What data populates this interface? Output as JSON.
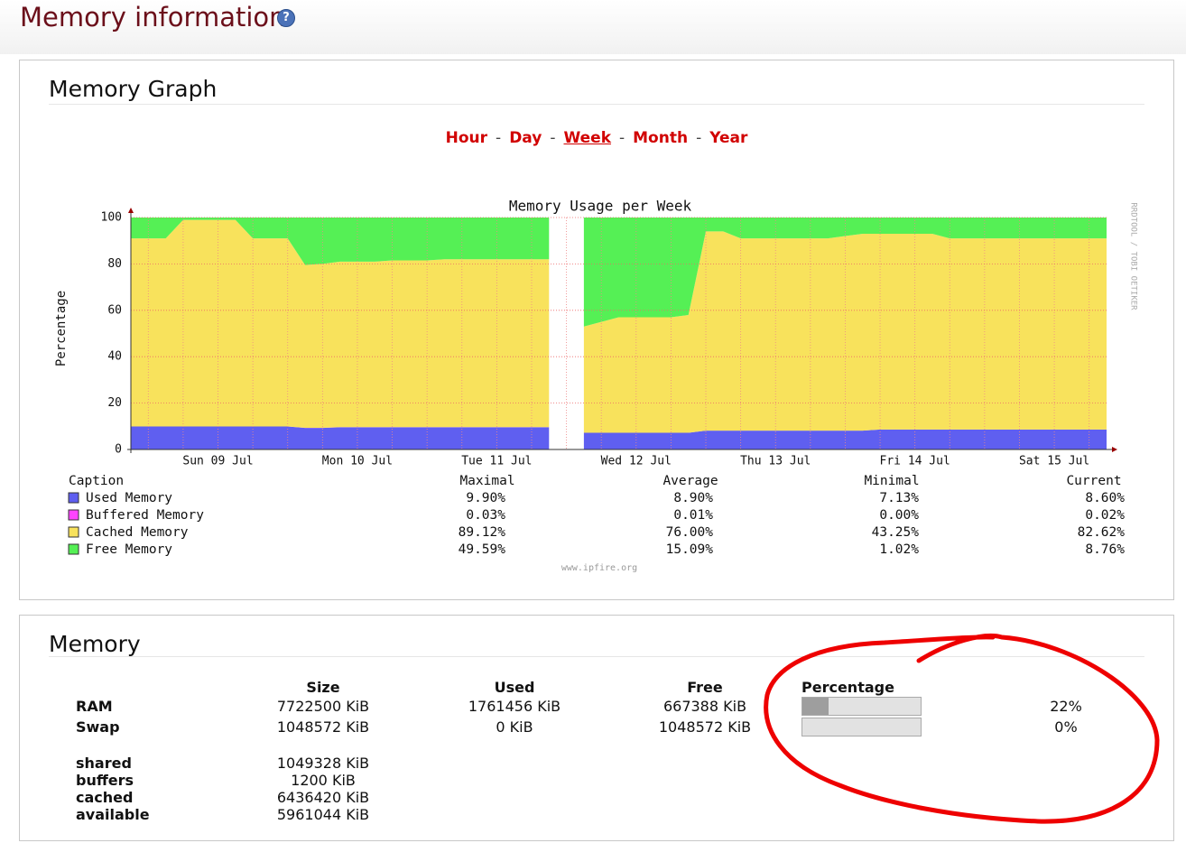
{
  "header": {
    "title": "Memory information",
    "help": "?"
  },
  "graph_panel": {
    "title": "Memory Graph",
    "ranges": [
      "Hour",
      "Day",
      "Week",
      "Month",
      "Year"
    ],
    "separator": "-",
    "selected": "Week"
  },
  "chart_data": {
    "type": "area",
    "stacked": true,
    "title": "Memory Usage per Week",
    "y_label": "Percentage",
    "watermark": "RRDTOOL / TOBI OETIKER",
    "footer": "www.ipfire.org",
    "caption_header": "Caption",
    "stat_headers": [
      "Maximal",
      "Average",
      "Minimal",
      "Current"
    ],
    "categories": [
      null,
      null,
      null,
      null,
      null,
      "Sun 09 Jul",
      null,
      null,
      null,
      null,
      null,
      null,
      null,
      "Mon 10 Jul",
      null,
      null,
      null,
      null,
      null,
      null,
      null,
      "Tue 11 Jul",
      null,
      null,
      null,
      null,
      null,
      null,
      null,
      "Wed 12 Jul",
      null,
      null,
      null,
      null,
      null,
      null,
      null,
      "Thu 13 Jul",
      null,
      null,
      null,
      null,
      null,
      null,
      null,
      "Fri 14 Jul",
      null,
      null,
      null,
      null,
      null,
      null,
      null,
      "Sat 15 Jul",
      null,
      null,
      null
    ],
    "series": [
      {
        "name": "Used Memory",
        "color": "#5f5ff0",
        "stats": [
          "9.90%",
          "8.90%",
          "7.13%",
          "8.60%"
        ],
        "values": [
          9.9,
          9.9,
          9.9,
          9.9,
          9.9,
          9.9,
          9.9,
          9.9,
          9.9,
          9.9,
          9.3,
          9.3,
          9.6,
          9.6,
          9.6,
          9.6,
          9.6,
          9.6,
          9.6,
          9.6,
          9.6,
          9.6,
          9.6,
          9.6,
          9.6,
          null,
          7.2,
          7.2,
          7.2,
          7.2,
          7.2,
          7.2,
          7.2,
          8.1,
          8.1,
          8.1,
          8.1,
          8.1,
          8.1,
          8.1,
          8.1,
          8.1,
          8.1,
          8.6,
          8.6,
          8.6,
          8.6,
          8.6,
          8.6,
          8.6,
          8.6,
          8.6,
          8.6,
          8.6,
          8.6,
          8.6,
          8.6
        ]
      },
      {
        "name": "Buffered Memory",
        "color": "#ff44ff",
        "stats": [
          "0.03%",
          "0.01%",
          "0.00%",
          "0.02%"
        ],
        "values": [
          0.02,
          0.02,
          0.02,
          0.02,
          0.02,
          0.02,
          0.02,
          0.02,
          0.02,
          0.02,
          0.02,
          0.02,
          0.02,
          0.02,
          0.02,
          0.02,
          0.02,
          0.02,
          0.02,
          0.02,
          0.02,
          0.02,
          0.02,
          0.02,
          0.02,
          null,
          0.02,
          0.02,
          0.02,
          0.02,
          0.02,
          0.02,
          0.02,
          0.02,
          0.02,
          0.02,
          0.02,
          0.02,
          0.02,
          0.02,
          0.02,
          0.02,
          0.02,
          0.02,
          0.02,
          0.02,
          0.02,
          0.02,
          0.02,
          0.02,
          0.02,
          0.02,
          0.02,
          0.02,
          0.02,
          0.02,
          0.02
        ]
      },
      {
        "name": "Cached Memory",
        "color": "#f8e25c",
        "stats": [
          "89.12%",
          "76.00%",
          "43.25%",
          "82.62%"
        ],
        "values": [
          81.08,
          81.08,
          81.08,
          89.08,
          89.08,
          89.08,
          89.08,
          81.08,
          81.08,
          81.08,
          70.18,
          70.68,
          71.38,
          71.38,
          71.38,
          71.88,
          71.88,
          71.88,
          72.38,
          72.38,
          72.38,
          72.38,
          72.38,
          72.38,
          72.38,
          null,
          45.78,
          47.78,
          49.78,
          49.78,
          49.78,
          49.78,
          50.78,
          85.88,
          85.88,
          82.88,
          82.88,
          82.88,
          82.88,
          82.88,
          82.88,
          83.88,
          84.88,
          84.38,
          84.38,
          84.38,
          84.38,
          82.38,
          82.38,
          82.38,
          82.38,
          82.38,
          82.38,
          82.38,
          82.38,
          82.38,
          82.38
        ]
      },
      {
        "name": "Free Memory",
        "color": "#55f055",
        "stats": [
          "49.59%",
          "15.09%",
          "1.02%",
          "8.76%"
        ],
        "values": [
          9,
          9,
          9,
          1,
          1,
          1,
          1,
          9,
          9,
          9,
          20.5,
          20,
          19,
          19,
          19,
          18.5,
          18.5,
          18.5,
          18,
          18,
          18,
          18,
          18,
          18,
          18,
          null,
          47,
          45,
          43,
          43,
          43,
          43,
          42,
          6,
          6,
          9,
          9,
          9,
          9,
          9,
          9,
          8,
          7,
          7,
          7,
          7,
          7,
          9,
          9,
          9,
          9,
          9,
          9,
          9,
          9,
          9,
          9
        ]
      }
    ],
    "ylim": [
      0,
      100
    ],
    "yticks": [
      0,
      20,
      40,
      60,
      80,
      100
    ],
    "grid": true
  },
  "memory_panel": {
    "title": "Memory",
    "headers": [
      "Size",
      "Used",
      "Free",
      "Percentage"
    ],
    "rows": [
      {
        "label": "RAM",
        "size": "7722500 KiB",
        "used": "1761456 KiB",
        "free": "667388 KiB",
        "percentage": {
          "value": 22,
          "label": "22%"
        }
      },
      {
        "label": "Swap",
        "size": "1048572 KiB",
        "used": "0 KiB",
        "free": "1048572 KiB",
        "percentage": {
          "value": 0,
          "label": "0%"
        }
      }
    ],
    "details": [
      {
        "label": "shared",
        "size": "1049328 KiB"
      },
      {
        "label": "buffers",
        "size": "1200 KiB"
      },
      {
        "label": "cached",
        "size": "6436420 KiB"
      },
      {
        "label": "available",
        "size": "5961044 KiB"
      }
    ]
  }
}
